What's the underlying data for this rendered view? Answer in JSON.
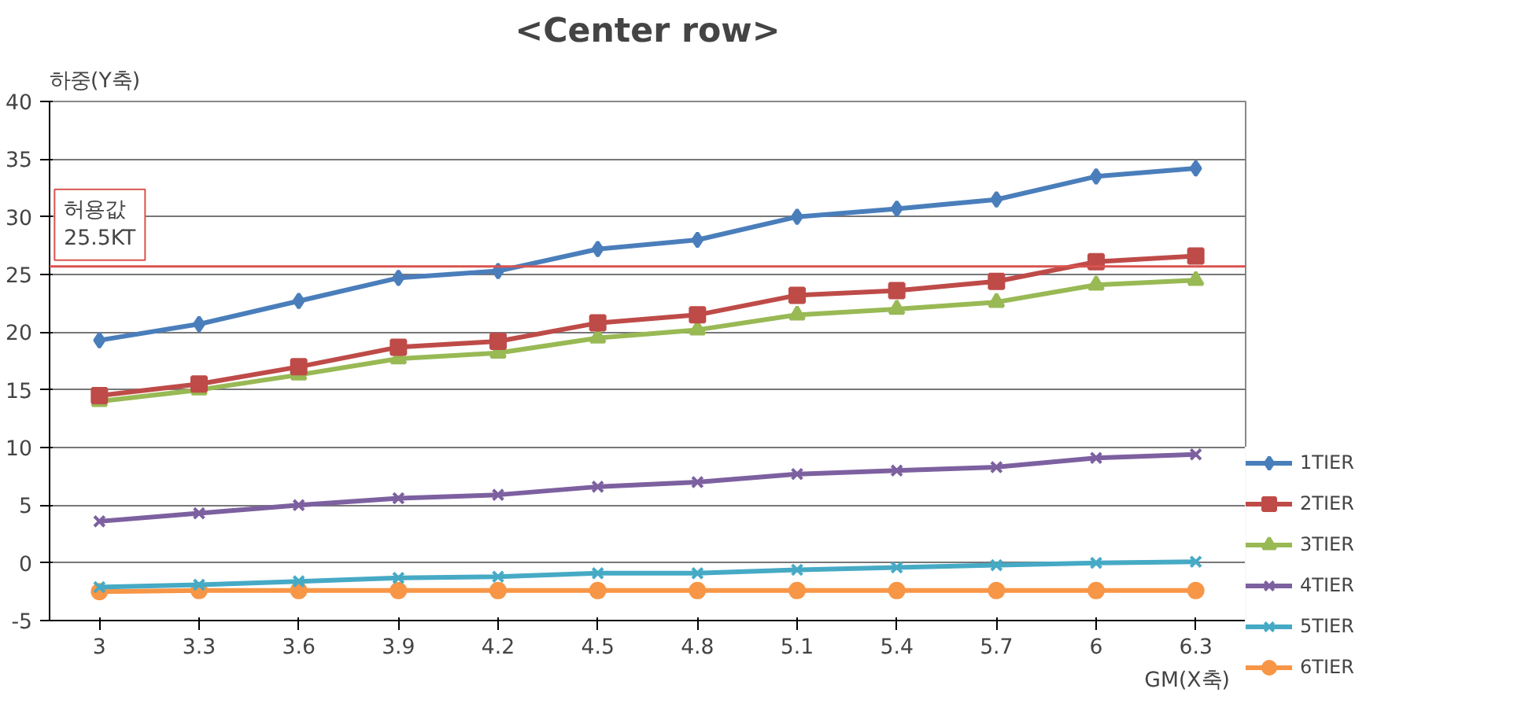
{
  "chart_data": {
    "type": "line",
    "title": "<Center row>",
    "xlabel": "GM(X축)",
    "ylabel": "하중(Y축)",
    "categories": [
      "3",
      "3.3",
      "3.6",
      "3.9",
      "4.2",
      "4.5",
      "4.8",
      "5.1",
      "5.4",
      "5.7",
      "6",
      "6.3"
    ],
    "ylim": [
      -5,
      40
    ],
    "yticks": [
      -5,
      0,
      5,
      10,
      15,
      20,
      25,
      30,
      35,
      40
    ],
    "grid": "y",
    "legend": "right",
    "series": [
      {
        "name": "1TIER",
        "color": "#4a7ebb",
        "marker": "diamond",
        "values": [
          19.3,
          20.7,
          22.7,
          24.7,
          25.3,
          27.2,
          28,
          30,
          30.7,
          31.5,
          33.5,
          34.2
        ]
      },
      {
        "name": "2TIER",
        "color": "#be4b48",
        "marker": "square",
        "values": [
          14.5,
          15.5,
          17,
          18.7,
          19.2,
          20.8,
          21.5,
          23.2,
          23.6,
          24.4,
          26.1,
          26.6
        ]
      },
      {
        "name": "3TIER",
        "color": "#98b954",
        "marker": "triangle",
        "values": [
          14,
          15,
          16.3,
          17.7,
          18.2,
          19.5,
          20.2,
          21.5,
          22,
          22.6,
          24.1,
          24.5
        ]
      },
      {
        "name": "4TIER",
        "color": "#7d60a0",
        "marker": "cross",
        "values": [
          3.6,
          4.3,
          5,
          5.6,
          5.9,
          6.6,
          7,
          7.7,
          8,
          8.3,
          9.1,
          9.4
        ]
      },
      {
        "name": "5TIER",
        "color": "#46aac5",
        "marker": "cross",
        "values": [
          -2.1,
          -1.9,
          -1.6,
          -1.3,
          -1.2,
          -0.9,
          -0.9,
          -0.6,
          -0.4,
          -0.2,
          0,
          0.1
        ]
      },
      {
        "name": "6TIER",
        "color": "#f79646",
        "marker": "circle",
        "values": [
          -2.5,
          -2.4,
          -2.4,
          -2.4,
          -2.4,
          -2.4,
          -2.4,
          -2.4,
          -2.4,
          -2.4,
          -2.4,
          -2.4
        ]
      }
    ],
    "ref_lines": [
      {
        "axis": "y",
        "value": 25.7,
        "label": "허용값\n25.5KT",
        "color": "#d9534f"
      }
    ]
  }
}
